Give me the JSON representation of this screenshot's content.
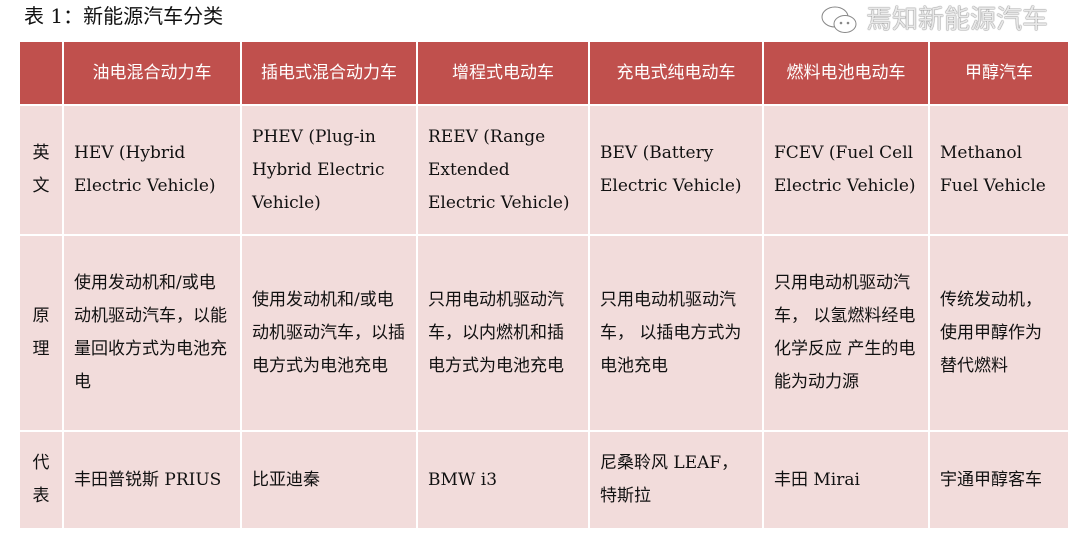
{
  "title": "表 1：新能源汽车分类",
  "table": {
    "headers": [
      "",
      "油电混合动力车",
      "插电式混合动力车",
      "增程式电动车",
      "充电式纯电动车",
      "燃料电池电动车",
      "甲醇汽车"
    ],
    "rows": [
      {
        "label": "英\n文",
        "cells": [
          "HEV (Hybrid Electric Vehicle)",
          "PHEV (Plug-in Hybrid Electric Vehicle)",
          "REEV (Range Extended Electric Vehicle)",
          "BEV (Battery Electric Vehicle)",
          "FCEV (Fuel Cell Electric Vehicle)",
          "Methanol Fuel Vehicle"
        ]
      },
      {
        "label": "原\n理",
        "cells": [
          "使用发动机和/或电动机驱动汽车，以能量回收方式为电池充电",
          "使用发动机和/或电动机驱动汽车，以插电方式为电池充电",
          "只用电动机驱动汽车，以内燃机和插电方式为电池充电",
          "只用电动机驱动汽车， 以插电方式为电池充电",
          "只用电动机驱动汽车， 以氢燃料经电化学反应 产生的电能为动力源",
          "传统发动机，使用甲醇作为替代燃料"
        ]
      },
      {
        "label": "代\n表",
        "cells": [
          "丰田普锐斯 PRIUS",
          "比亚迪秦",
          "BMW i3",
          "尼桑聆风 LEAF，特斯拉",
          "丰田 Mirai",
          "宇通甲醇客车"
        ]
      }
    ]
  },
  "watermark": "焉知新能源汽车",
  "colors": {
    "header_bg": "#c0504d",
    "cell_bg": "#f2dcdb"
  }
}
